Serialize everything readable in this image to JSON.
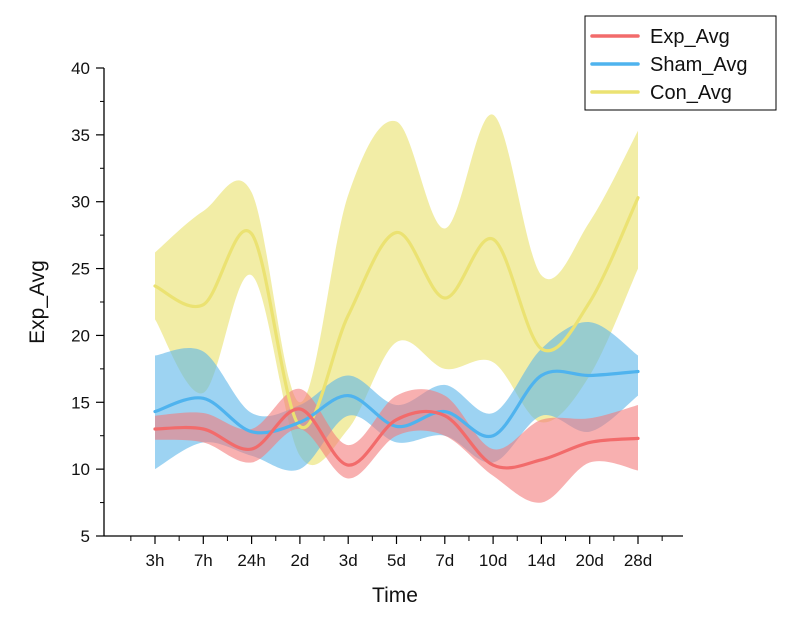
{
  "chart_data": {
    "type": "line",
    "title": "",
    "xlabel": "Time",
    "ylabel": "Exp_Avg",
    "categories": [
      "3h",
      "7h",
      "24h",
      "2d",
      "3d",
      "5d",
      "7d",
      "10d",
      "14d",
      "20d",
      "28d"
    ],
    "ylim": [
      5,
      40
    ],
    "yticks": [
      5,
      10,
      15,
      20,
      25,
      30,
      35,
      40
    ],
    "grid": false,
    "legend_position": "top-right",
    "series": [
      {
        "name": "Exp_Avg",
        "color": "#f26b6b",
        "band_color": "#f47c7c",
        "values": [
          13.0,
          13.0,
          11.5,
          14.5,
          10.3,
          13.7,
          14.0,
          10.3,
          10.7,
          12.0,
          12.3
        ],
        "upper": [
          14.0,
          14.2,
          13.0,
          16.0,
          11.8,
          15.5,
          15.5,
          11.5,
          13.7,
          13.8,
          14.8
        ],
        "lower": [
          12.2,
          12.0,
          10.5,
          13.0,
          9.3,
          12.5,
          12.5,
          9.5,
          7.5,
          10.5,
          9.9
        ]
      },
      {
        "name": "Sham_Avg",
        "color": "#4fb3ee",
        "band_color": "#5cb6ea",
        "values": [
          14.3,
          15.3,
          12.8,
          13.5,
          15.5,
          13.2,
          14.3,
          12.5,
          17.0,
          17.0,
          17.3
        ],
        "upper": [
          18.5,
          18.8,
          14.2,
          14.8,
          17.0,
          14.8,
          16.3,
          14.2,
          19.0,
          21.0,
          18.5
        ],
        "lower": [
          10.0,
          12.0,
          11.0,
          10.0,
          14.0,
          12.0,
          12.5,
          10.5,
          14.0,
          12.8,
          15.5
        ]
      },
      {
        "name": "Con_Avg",
        "color": "#ebe272",
        "band_color": "#eae26f",
        "values": [
          23.7,
          22.3,
          27.6,
          13.2,
          21.5,
          27.7,
          22.8,
          27.2,
          19.0,
          22.5,
          30.3
        ],
        "upper": [
          26.2,
          29.3,
          30.7,
          15.0,
          30.5,
          36.0,
          28.0,
          36.5,
          24.5,
          28.5,
          35.3
        ],
        "lower": [
          21.2,
          15.7,
          24.5,
          11.0,
          13.0,
          19.5,
          17.5,
          18.0,
          13.5,
          17.0,
          25.0
        ]
      }
    ]
  }
}
